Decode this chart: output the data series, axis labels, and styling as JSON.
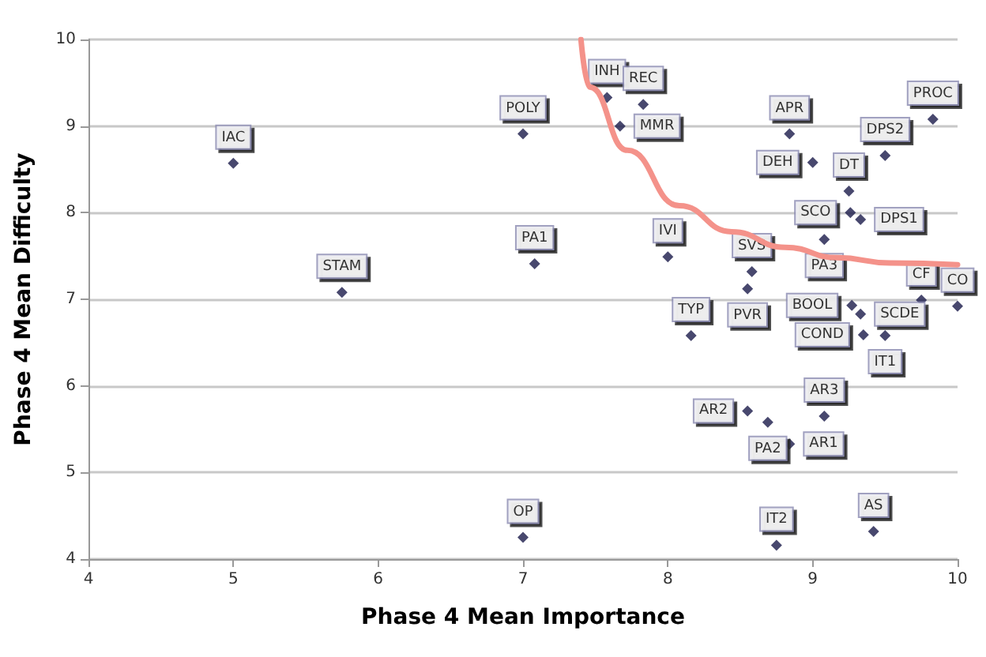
{
  "chart_data": {
    "type": "scatter",
    "xlabel": "Phase 4 Mean Importance",
    "ylabel": "Phase 4 Mean Difficulty",
    "xlim": [
      4,
      10
    ],
    "ylim": [
      4,
      10
    ],
    "xticks": [
      4,
      5,
      6,
      7,
      8,
      9,
      10
    ],
    "yticks": [
      4,
      5,
      6,
      7,
      8,
      9,
      10
    ],
    "grid": "y",
    "marker": "diamond",
    "series": [
      {
        "color": "#1a1a4a",
        "x": [
          5.0,
          5.75,
          7.0,
          7.08,
          7.0,
          7.58,
          7.83,
          7.67,
          8.84,
          9.0,
          9.25,
          9.83,
          9.5,
          9.26,
          9.33,
          8.0,
          8.58,
          9.08,
          9.75,
          10.0,
          8.55,
          9.27,
          9.33,
          8.16,
          9.35,
          9.5,
          9.08,
          8.55,
          8.69,
          8.84,
          8.75,
          9.42
        ],
        "values": [
          8.57,
          7.08,
          8.91,
          7.41,
          4.25,
          9.33,
          9.25,
          9.0,
          8.91,
          8.58,
          8.25,
          9.08,
          8.66,
          8.0,
          7.92,
          7.49,
          7.32,
          7.69,
          6.99,
          6.92,
          7.12,
          6.93,
          6.83,
          6.58,
          6.59,
          6.58,
          5.65,
          5.71,
          5.58,
          5.33,
          4.16,
          4.32
        ],
        "value_labels": [
          "IAC",
          "STAM",
          "POLY",
          "PA1",
          "OP",
          "INH",
          "REC",
          "MMR",
          "APR",
          "DEH",
          "DT",
          "PROC",
          "DPS2",
          "SCO",
          "DPS1",
          "IVI",
          "SVS",
          "PA3",
          "CF",
          "CO",
          "PVR",
          "BOOL",
          "SCDE",
          "TYP",
          "COND",
          "IT1",
          "AR3",
          "AR2",
          "PA2",
          "AR1",
          "IT2",
          "AS"
        ]
      },
      {
        "type": "line",
        "color": "#f4928a",
        "marker": "none",
        "x": [
          7.4,
          7.46,
          7.72,
          8.08,
          8.44,
          8.81,
          9.17,
          9.53,
          10.0
        ],
        "values": [
          10,
          9.45,
          8.72,
          8.08,
          7.78,
          7.6,
          7.48,
          7.42,
          7.4
        ]
      }
    ]
  }
}
